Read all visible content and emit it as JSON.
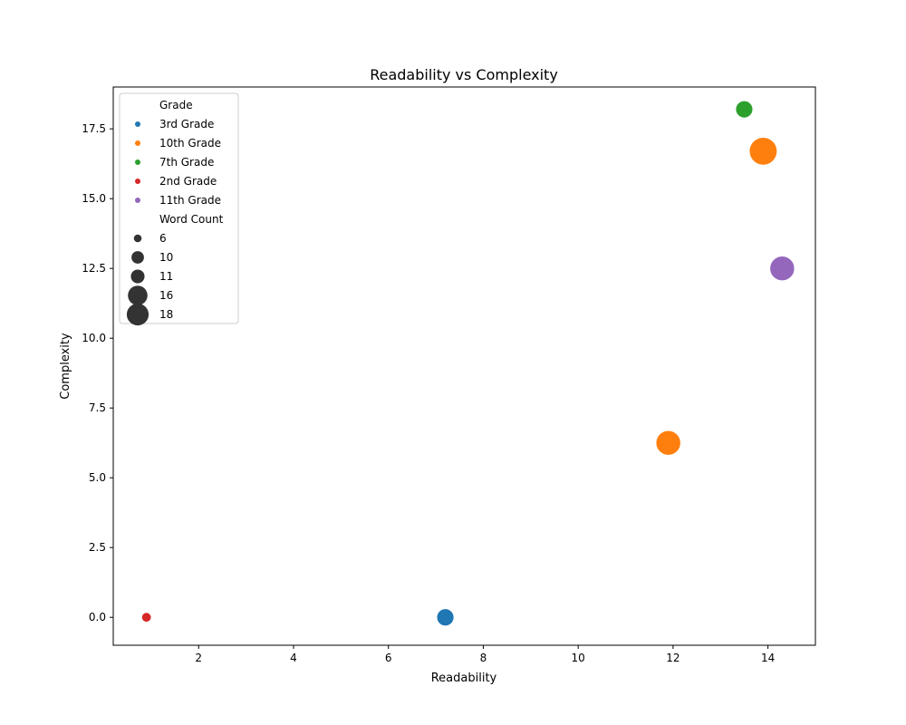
{
  "chart_data": {
    "type": "scatter",
    "title": "Readability vs Complexity",
    "xlabel": "Readability",
    "ylabel": "Complexity",
    "xlim": [
      0.2,
      15.0
    ],
    "ylim": [
      -1.0,
      19.0
    ],
    "xticks": [
      2,
      4,
      6,
      8,
      10,
      12,
      14
    ],
    "xtick_labels": [
      "2",
      "4",
      "6",
      "8",
      "10",
      "12",
      "14"
    ],
    "yticks": [
      0.0,
      2.5,
      5.0,
      7.5,
      10.0,
      12.5,
      15.0,
      17.5
    ],
    "ytick_labels": [
      "0.0",
      "2.5",
      "5.0",
      "7.5",
      "10.0",
      "12.5",
      "15.0",
      "17.5"
    ],
    "grid": false,
    "legend": {
      "placement": "top-left",
      "hue_title": "Grade",
      "hue_entries": [
        {
          "label": "3rd Grade",
          "color": "#1f77b4"
        },
        {
          "label": "10th Grade",
          "color": "#ff7f0e"
        },
        {
          "label": "7th Grade",
          "color": "#2ca02c"
        },
        {
          "label": "2nd Grade",
          "color": "#d62728"
        },
        {
          "label": "11th Grade",
          "color": "#9467bd"
        }
      ],
      "size_title": "Word Count",
      "size_entries": [
        6,
        10,
        11,
        16,
        18
      ]
    },
    "points": [
      {
        "x": 7.2,
        "y": 0.0,
        "grade": "3rd Grade",
        "word_count": 11
      },
      {
        "x": 11.9,
        "y": 6.25,
        "grade": "10th Grade",
        "word_count": 16
      },
      {
        "x": 13.9,
        "y": 16.7,
        "grade": "10th Grade",
        "word_count": 18
      },
      {
        "x": 13.5,
        "y": 18.2,
        "grade": "7th Grade",
        "word_count": 11
      },
      {
        "x": 0.9,
        "y": 0.0,
        "grade": "2nd Grade",
        "word_count": 6
      },
      {
        "x": 14.3,
        "y": 12.5,
        "grade": "11th Grade",
        "word_count": 16
      }
    ]
  }
}
